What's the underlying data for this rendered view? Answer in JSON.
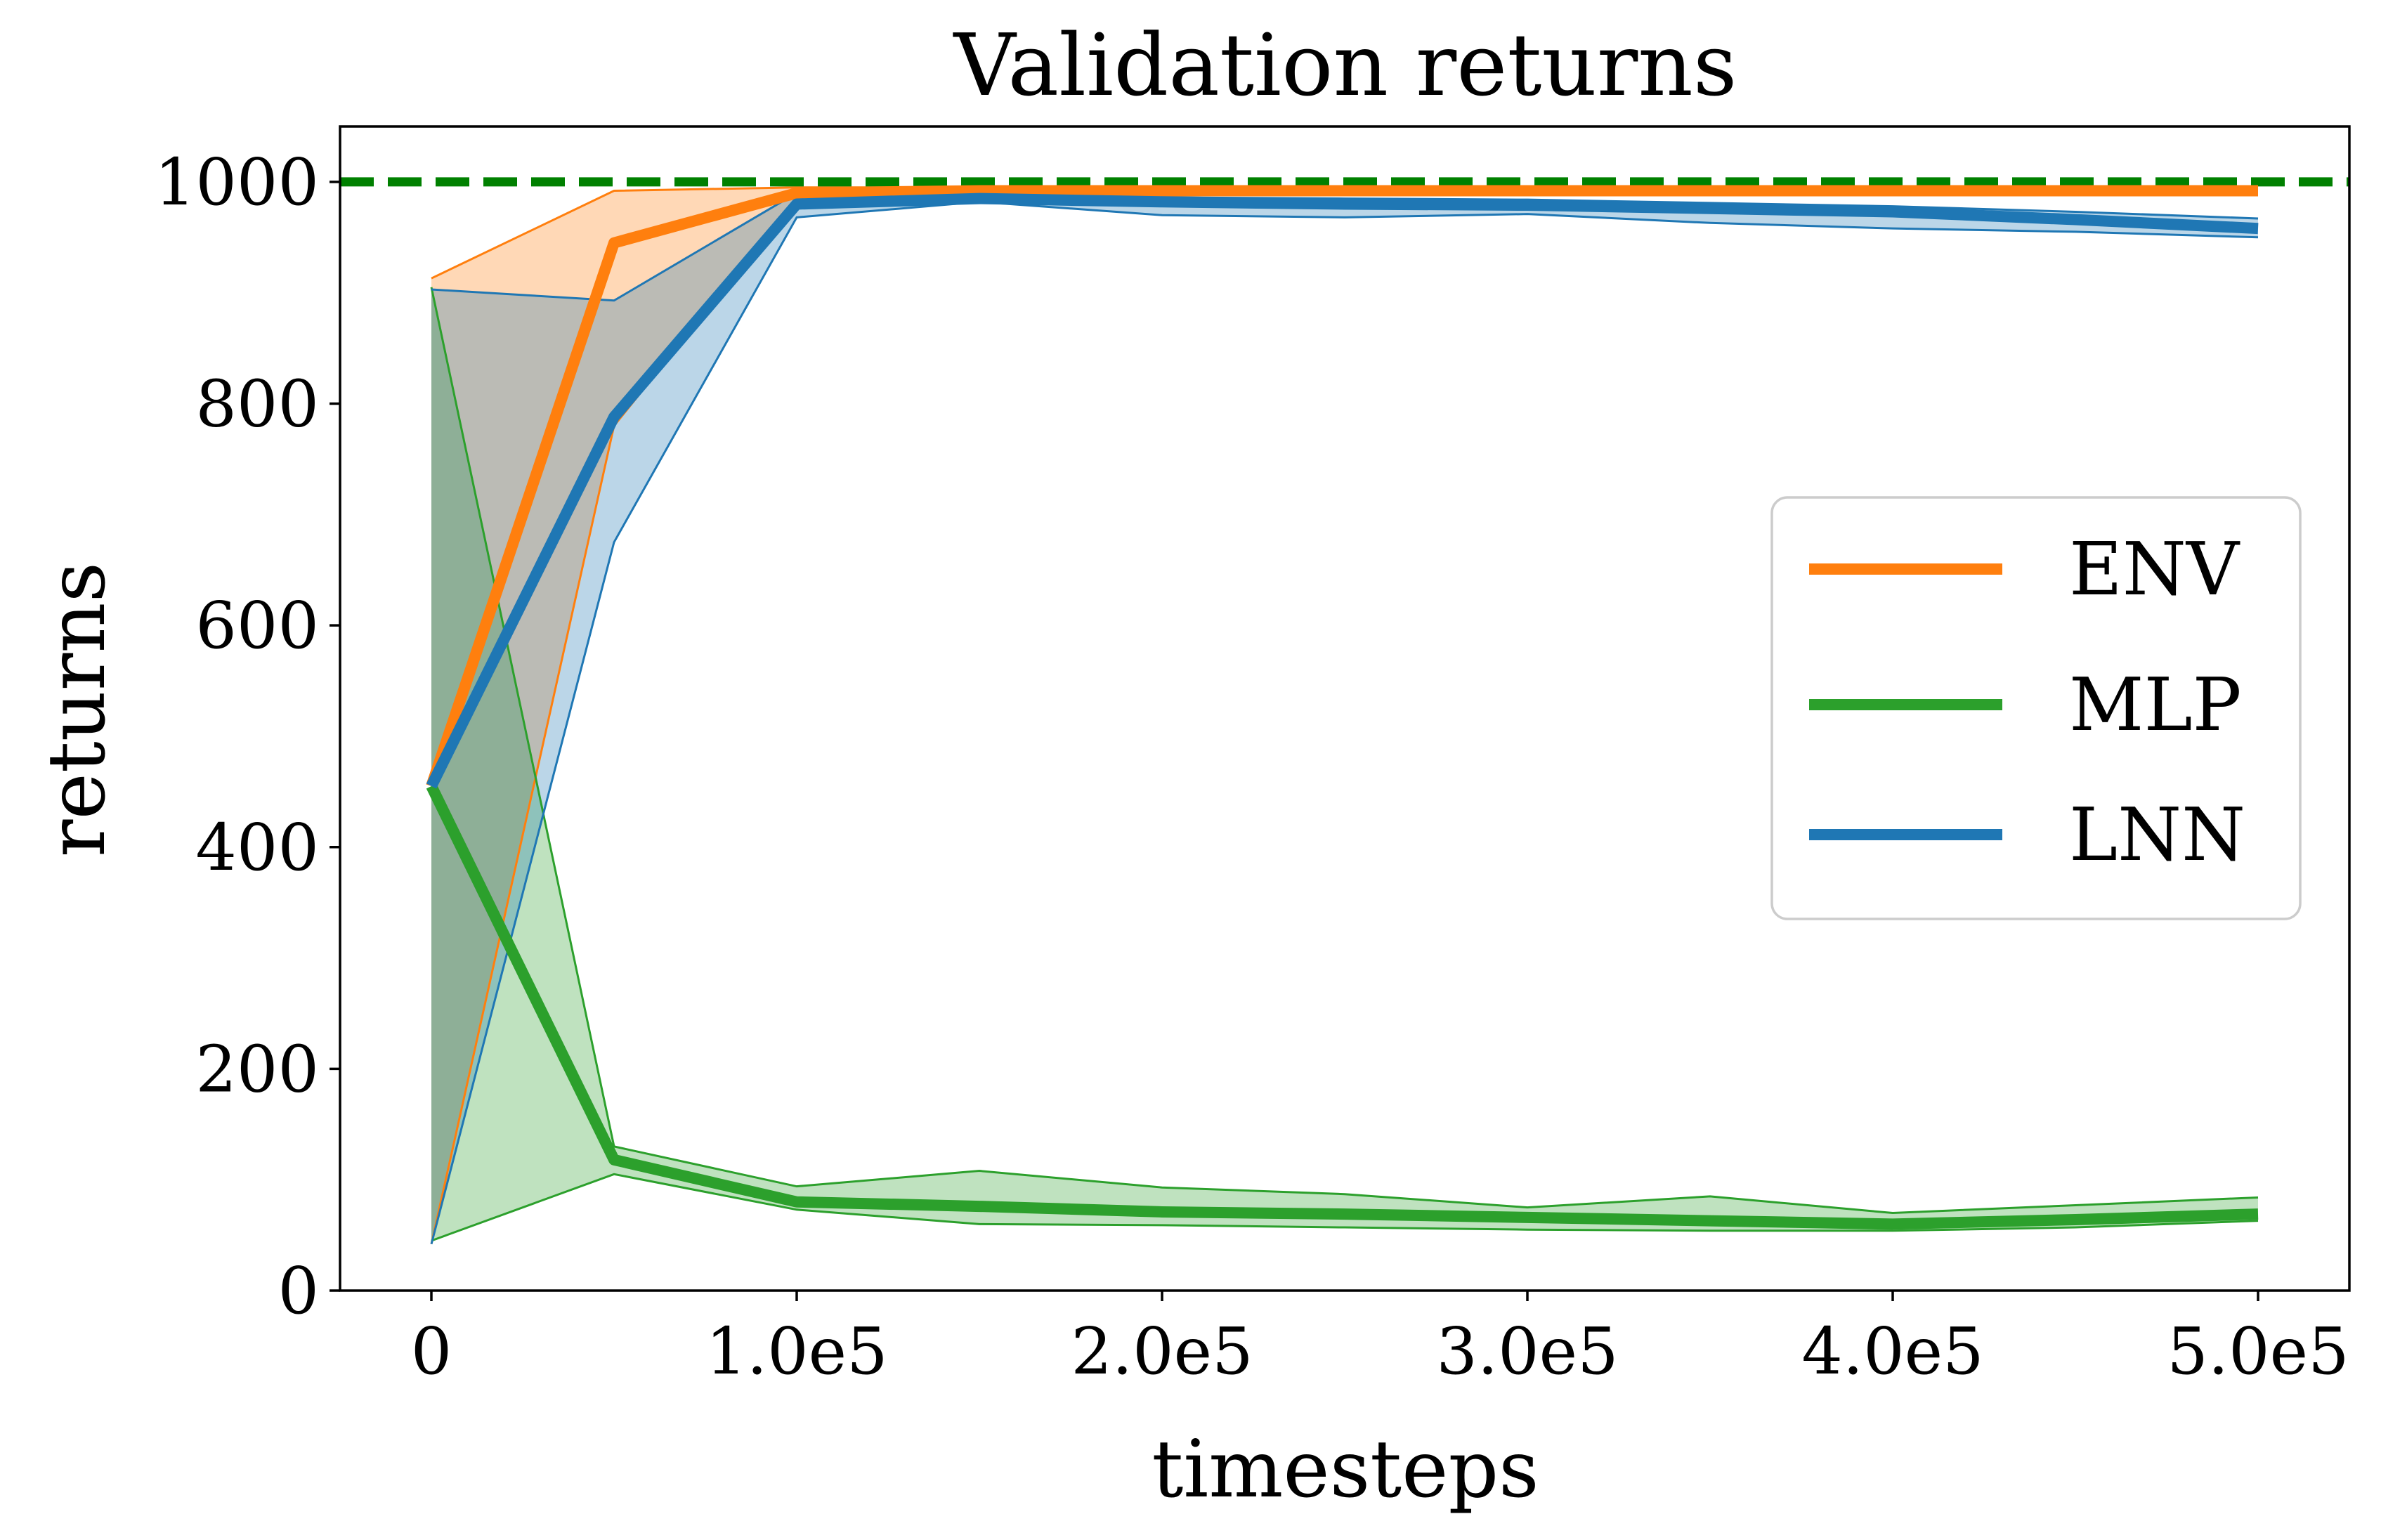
{
  "chart_data": {
    "type": "line",
    "title": "Validation returns",
    "xlabel": "timesteps",
    "ylabel": "returns",
    "xlim": [
      -25000,
      525000
    ],
    "ylim": [
      0,
      1050
    ],
    "x_ticks": [
      0,
      100000,
      200000,
      300000,
      400000,
      500000
    ],
    "x_tick_labels": [
      "0",
      "1.0e5",
      "2.0e5",
      "3.0e5",
      "4.0e5",
      "5.0e5"
    ],
    "y_ticks": [
      0,
      200,
      400,
      600,
      800,
      1000
    ],
    "y_tick_labels": [
      "0",
      "200",
      "400",
      "600",
      "800",
      "1000"
    ],
    "grid": false,
    "legend_position": "center-right",
    "reference_line": {
      "y": 1000,
      "style": "dashed",
      "color": "#008000"
    },
    "x": [
      0,
      50000,
      100000,
      150000,
      200000,
      250000,
      300000,
      350000,
      400000,
      450000,
      500000
    ],
    "series": [
      {
        "name": "ENV",
        "color": "#ff7f0e",
        "values": [
          455,
          945,
          990,
          992,
          992,
          992,
          992,
          992,
          992,
          992,
          992
        ],
        "upper": [
          913,
          992,
          995,
          995,
          995,
          995,
          995,
          995,
          995,
          995,
          995
        ],
        "lower": [
          42,
          780,
          985,
          988,
          988,
          988,
          988,
          988,
          988,
          988,
          988
        ]
      },
      {
        "name": "MLP",
        "color": "#2ca02c",
        "values": [
          455,
          118,
          80,
          76,
          71,
          69,
          66,
          63,
          60,
          64,
          69
        ],
        "upper": [
          905,
          130,
          94,
          108,
          93,
          87,
          75,
          85,
          70,
          77,
          84
        ],
        "lower": [
          45,
          105,
          73,
          60,
          59,
          57,
          55,
          54,
          54,
          57,
          63
        ]
      },
      {
        "name": "LNN",
        "color": "#1f77b4",
        "values": [
          455,
          788,
          980,
          985,
          982,
          980,
          979,
          976,
          973,
          966,
          958
        ],
        "upper": [
          903,
          893,
          990,
          988,
          986,
          985,
          984,
          981,
          978,
          973,
          967
        ],
        "lower": [
          42,
          675,
          968,
          982,
          970,
          968,
          971,
          963,
          958,
          955,
          950
        ]
      }
    ]
  }
}
